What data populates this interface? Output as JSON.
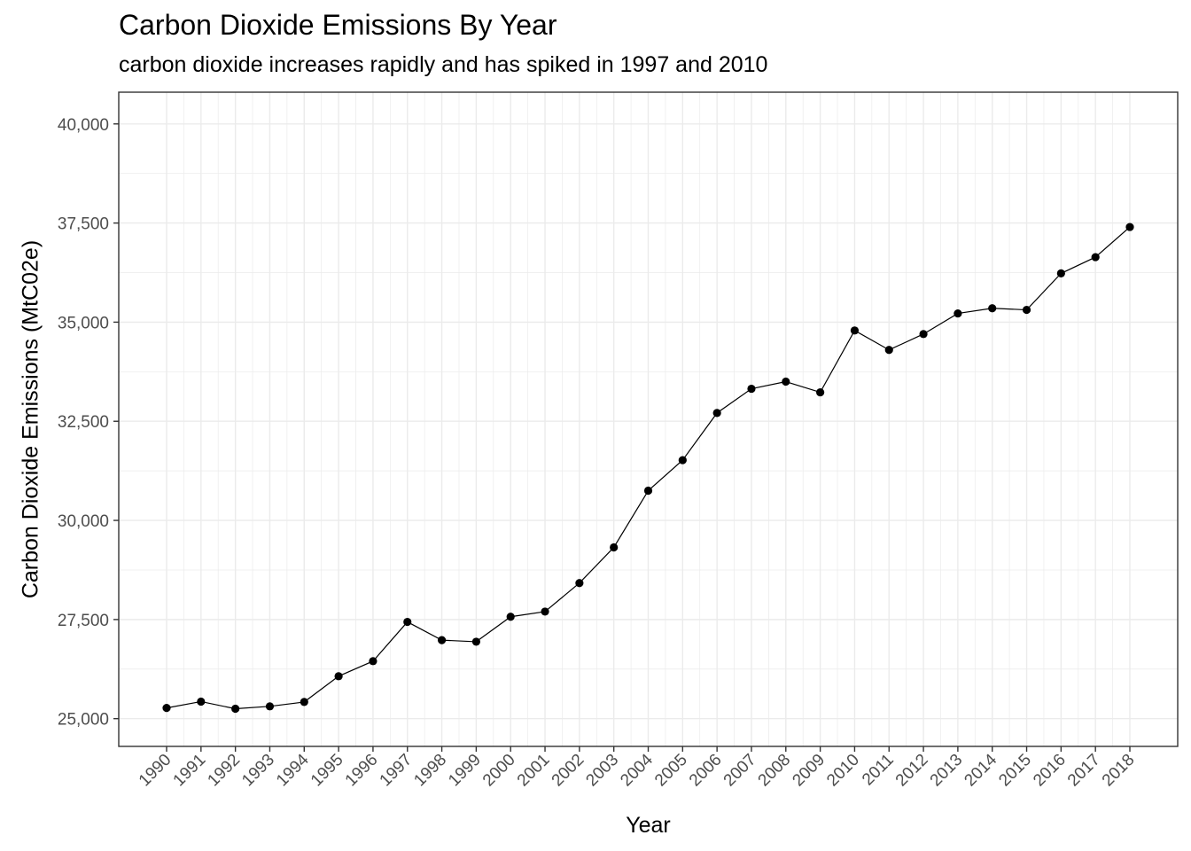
{
  "chart_data": {
    "type": "line",
    "title": "Carbon Dioxide Emissions By Year",
    "subtitle": "carbon dioxide increases rapidly and has spiked in 1997 and 2010",
    "xlabel": "Year",
    "ylabel": "Carbon Dioxide Emissions (MtC02e)",
    "ylim": [
      24300,
      40800
    ],
    "yticks": [
      25000,
      27500,
      30000,
      32500,
      35000,
      37500,
      40000
    ],
    "ytick_labels": [
      "25,000",
      "27,500",
      "30,000",
      "32,500",
      "35,000",
      "37,500",
      "40,000"
    ],
    "x": [
      "1990",
      "1991",
      "1992",
      "1993",
      "1994",
      "1995",
      "1996",
      "1997",
      "1998",
      "1999",
      "2000",
      "2001",
      "2002",
      "2003",
      "2004",
      "2005",
      "2006",
      "2007",
      "2008",
      "2009",
      "2010",
      "2011",
      "2012",
      "2013",
      "2014",
      "2015",
      "2016",
      "2017",
      "2018"
    ],
    "series": [
      {
        "values": [
          25270,
          25430,
          25250,
          25310,
          25420,
          26070,
          26450,
          27440,
          26980,
          26940,
          27570,
          27700,
          28420,
          29320,
          30750,
          31520,
          32710,
          33320,
          33500,
          33230,
          34790,
          34300,
          34700,
          35220,
          35350,
          35310,
          36230,
          36640,
          37400
        ]
      }
    ],
    "grid": true,
    "colors": {
      "line": "#000000",
      "point": "#000000",
      "grid": "#ebebeb",
      "panel_border": "#333333"
    }
  }
}
